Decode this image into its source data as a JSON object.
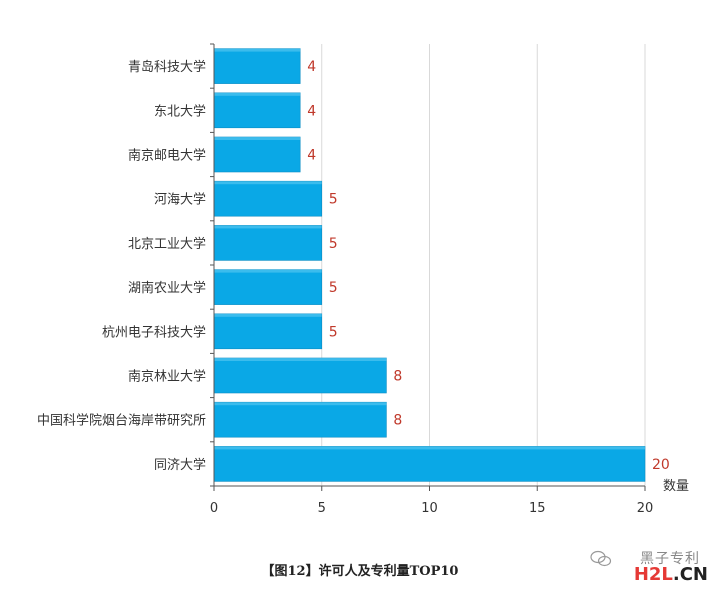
{
  "chart_data": {
    "type": "bar",
    "orientation": "horizontal",
    "categories": [
      "青岛科技大学",
      "东北大学",
      "南京邮电大学",
      "河海大学",
      "北京工业大学",
      "湖南农业大学",
      "杭州电子科技大学",
      "南京林业大学",
      "中国科学院烟台海岸带研究所",
      "同济大学"
    ],
    "values": [
      4,
      4,
      4,
      5,
      5,
      5,
      5,
      8,
      8,
      20
    ],
    "xlabel": "数量",
    "xlim": [
      0,
      20
    ],
    "xticks": [
      0,
      5,
      10,
      15,
      20
    ],
    "grid": "vertical",
    "bar_color": "#0aa8e6",
    "value_label_color": "#c0392b"
  },
  "caption": "【图12】许可人及专利量TOP10",
  "watermark": {
    "line1": "黑子专利",
    "logo_h2l": "H2L",
    "logo_cn": ".CN"
  }
}
